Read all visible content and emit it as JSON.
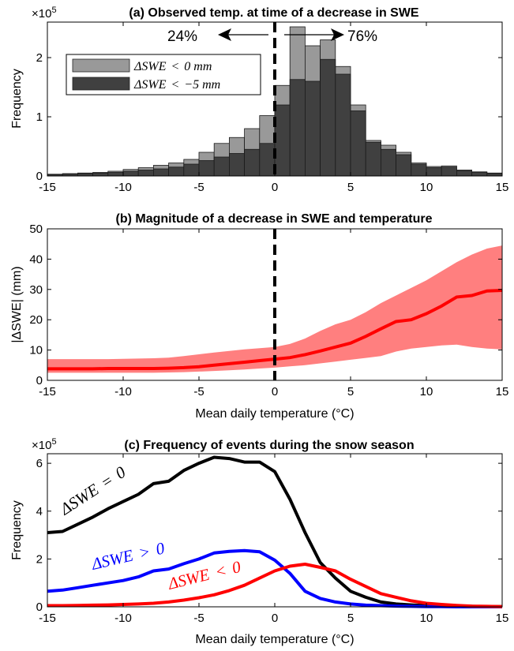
{
  "chart_data": [
    {
      "type": "bar",
      "panel": "a",
      "title": "(a) Observed temp. at time of a decrease in SWE",
      "exponent_label": "×10",
      "exponent_power": "5",
      "xlabel": "",
      "ylabel": "Frequency",
      "xlim": [
        -15,
        15
      ],
      "ylim": [
        0,
        2.6
      ],
      "xticks": [
        -15,
        -10,
        -5,
        0,
        5,
        10,
        15
      ],
      "yticks": [
        0,
        1,
        2
      ],
      "bin_width": 1,
      "bin_centers": [
        -14.5,
        -13.5,
        -12.5,
        -11.5,
        -10.5,
        -9.5,
        -8.5,
        -7.5,
        -6.5,
        -5.5,
        -4.5,
        -3.5,
        -2.5,
        -1.5,
        -0.5,
        0.5,
        1.5,
        2.5,
        3.5,
        4.5,
        5.5,
        6.5,
        7.5,
        8.5,
        9.5,
        10.5,
        11.5,
        12.5,
        13.5,
        14.5
      ],
      "series": [
        {
          "name": "ΔSWE < 0 mm",
          "color": "#999999",
          "values": [
            0.03,
            0.04,
            0.05,
            0.06,
            0.08,
            0.11,
            0.14,
            0.18,
            0.22,
            0.28,
            0.4,
            0.55,
            0.65,
            0.8,
            1.02,
            1.53,
            2.52,
            2.2,
            2.3,
            1.85,
            1.2,
            0.6,
            0.52,
            0.4,
            0.22,
            0.16,
            0.17,
            0.1,
            0.07,
            0.05
          ]
        },
        {
          "name": "ΔSWE < −5 mm",
          "color": "#404040",
          "values": [
            0.02,
            0.03,
            0.04,
            0.05,
            0.06,
            0.08,
            0.1,
            0.12,
            0.15,
            0.2,
            0.26,
            0.32,
            0.38,
            0.45,
            0.55,
            1.2,
            1.63,
            1.6,
            1.97,
            1.72,
            1.1,
            0.57,
            0.45,
            0.36,
            0.2,
            0.14,
            0.15,
            0.09,
            0.06,
            0.04
          ]
        }
      ],
      "annotations": {
        "left_pct": "24%",
        "right_pct": "76%"
      },
      "vline_x": 0
    },
    {
      "type": "line",
      "panel": "b",
      "title": "(b) Magnitude of a decrease in SWE and temperature",
      "xlabel": "Mean daily temperature (°C)",
      "ylabel": "|ΔSWE| (mm)",
      "xlim": [
        -15,
        15
      ],
      "ylim": [
        0,
        50
      ],
      "xticks": [
        -15,
        -10,
        -5,
        0,
        5,
        10,
        15
      ],
      "yticks": [
        0,
        10,
        20,
        30,
        40,
        50
      ],
      "series": [
        {
          "color": "#ff0000",
          "x": [
            -15,
            -14,
            -13,
            -12,
            -11,
            -10,
            -9,
            -8,
            -7,
            -6,
            -5,
            -4,
            -3,
            -2,
            -1,
            0,
            1,
            2,
            3,
            4,
            5,
            6,
            7,
            8,
            9,
            10,
            11,
            12,
            13,
            14,
            15
          ],
          "values": [
            3.8,
            3.8,
            3.8,
            3.8,
            3.9,
            3.9,
            3.9,
            3.9,
            4.0,
            4.2,
            4.5,
            5.0,
            5.5,
            6.0,
            6.5,
            7.0,
            7.5,
            8.5,
            9.7,
            11.0,
            12.3,
            14.5,
            17.0,
            19.4,
            20.0,
            22.0,
            24.5,
            27.5,
            28.0,
            29.5,
            29.7
          ]
        }
      ],
      "band": {
        "color": "#ff7f7f",
        "upper": [
          7.0,
          7.0,
          7.0,
          7.0,
          7.0,
          7.1,
          7.2,
          7.3,
          7.5,
          8.0,
          8.6,
          9.2,
          9.7,
          10.2,
          10.6,
          11.0,
          12.0,
          13.8,
          16.3,
          18.5,
          20.0,
          22.5,
          25.5,
          28.0,
          30.5,
          33.0,
          36.0,
          39.0,
          41.5,
          43.5,
          44.5
        ],
        "lower": [
          2.5,
          2.5,
          2.5,
          2.5,
          2.5,
          2.5,
          2.5,
          2.5,
          2.6,
          2.7,
          2.9,
          3.1,
          3.3,
          3.6,
          3.9,
          4.2,
          4.6,
          5.0,
          5.6,
          6.2,
          6.8,
          7.4,
          8.0,
          9.5,
          10.5,
          11.0,
          11.5,
          11.8,
          11.0,
          10.5,
          10.2
        ]
      },
      "vline_x": 0
    },
    {
      "type": "line",
      "panel": "c",
      "title": "(c) Frequency of events during the snow season",
      "exponent_label": "×10",
      "exponent_power": "5",
      "xlabel": "Mean daily temperature (°C)",
      "ylabel": "Frequency",
      "xlim": [
        -15,
        15
      ],
      "ylim": [
        0,
        6.4
      ],
      "xticks": [
        -15,
        -10,
        -5,
        0,
        5,
        10,
        15
      ],
      "yticks": [
        0,
        2,
        4,
        6
      ],
      "x": [
        -15,
        -14,
        -13,
        -12,
        -11,
        -10,
        -9,
        -8,
        -7,
        -6,
        -5,
        -4,
        -3,
        -2,
        -1,
        0,
        1,
        2,
        3,
        4,
        5,
        6,
        7,
        8,
        9,
        10,
        11,
        12,
        13,
        14,
        15
      ],
      "series": [
        {
          "name": "ΔSWE = 0",
          "color": "#000000",
          "values": [
            3.1,
            3.15,
            3.45,
            3.75,
            4.1,
            4.4,
            4.7,
            5.15,
            5.25,
            5.7,
            6.0,
            6.25,
            6.2,
            6.05,
            6.05,
            5.65,
            4.5,
            3.1,
            1.85,
            1.2,
            0.65,
            0.4,
            0.2,
            0.12,
            0.08,
            0.05,
            0.03,
            0.02,
            0.02,
            0.01,
            0.01
          ]
        },
        {
          "name": "ΔSWE > 0",
          "color": "#0000ff",
          "values": [
            0.65,
            0.7,
            0.8,
            0.9,
            1.0,
            1.1,
            1.25,
            1.5,
            1.58,
            1.8,
            2.0,
            2.25,
            2.32,
            2.35,
            2.3,
            1.95,
            1.4,
            0.65,
            0.35,
            0.2,
            0.12,
            0.07,
            0.05,
            0.03,
            0.02,
            0.01,
            0.01,
            0.0,
            0.0,
            0.0,
            0.0
          ]
        },
        {
          "name": "ΔSWE < 0",
          "color": "#ff0000",
          "values": [
            0.05,
            0.05,
            0.06,
            0.07,
            0.08,
            0.1,
            0.12,
            0.15,
            0.2,
            0.28,
            0.38,
            0.5,
            0.68,
            0.9,
            1.2,
            1.5,
            1.7,
            1.78,
            1.65,
            1.5,
            1.15,
            0.85,
            0.55,
            0.4,
            0.25,
            0.15,
            0.1,
            0.06,
            0.03,
            0.02,
            0.01
          ]
        }
      ],
      "series_labels": {
        "zero": {
          "lhs": "ΔSWE",
          "op": "=",
          "rhs": "0"
        },
        "pos": {
          "lhs": "ΔSWE",
          "op": ">",
          "rhs": "0"
        },
        "neg": {
          "lhs": "ΔSWE",
          "op": "<",
          "rhs": "0"
        }
      }
    }
  ],
  "legend_a": {
    "item1": {
      "lhs": "ΔSWE",
      "op": "<",
      "rhs": "0 mm"
    },
    "item2": {
      "lhs": "ΔSWE",
      "op": "<",
      "rhs": "−5 mm"
    }
  }
}
